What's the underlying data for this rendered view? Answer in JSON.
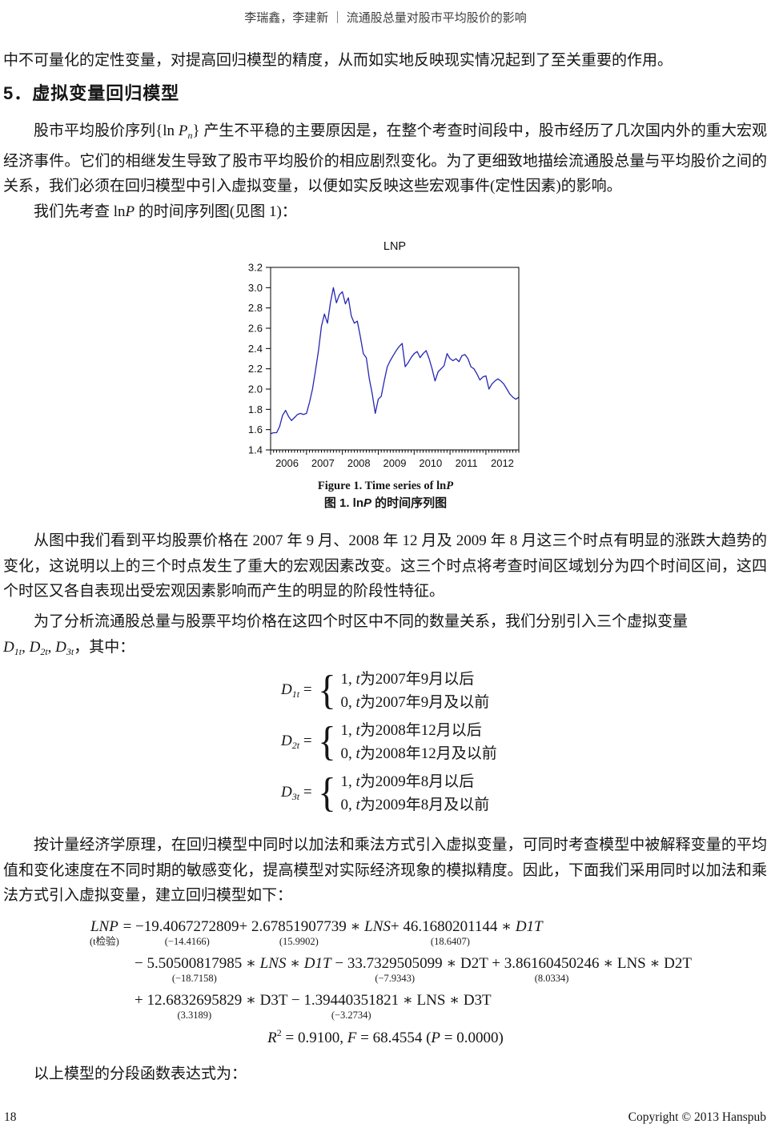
{
  "header": {
    "running_title": "李瑞鑫，李建新 ｜ 流通股总量对股市平均股价的影响"
  },
  "intro": {
    "text": "中不可量化的定性变量，对提高回归模型的精度，从而如实地反映现实情况起到了至关重要的作用。"
  },
  "section": {
    "heading": "5．虚拟变量回归模型"
  },
  "para1": {
    "runs": [
      {
        "t": "股市平均股价序列"
      },
      {
        "t": "{ln "
      },
      {
        "t": "P",
        "s": "it"
      },
      {
        "t": "n",
        "s": "sub"
      },
      {
        "t": "} "
      },
      {
        "t": "产生不平稳的主要原因是，在整个考查时间段中，股市经历了几次国内外的重大宏观经济事件。它们的相继发生导致了股市平均股价的相应剧烈变化。为了更细致地描绘流通股总量与平均股价之间的关系，我们必须在回归模型中引入虚拟变量，以便如实反映这些宏观事件(定性因素)的影响。"
      }
    ]
  },
  "para1b": {
    "runs": [
      {
        "t": "我们先考查 ln"
      },
      {
        "t": "P",
        "s": "it"
      },
      {
        "t": " 的时间序列图(见图 1)："
      }
    ]
  },
  "chart_data": {
    "type": "line",
    "title": "LNP",
    "ylim": [
      1.4,
      3.2
    ],
    "ytick_step": 0.2,
    "x_start_year": 2006,
    "x_frequency": "monthly",
    "year_labels": [
      2006,
      2007,
      2008,
      2009,
      2010,
      2011,
      2012
    ],
    "grid": false,
    "legend": "none",
    "series": [
      {
        "name": "LNP",
        "color": "#2626b4",
        "values": [
          1.56,
          1.57,
          1.57,
          1.63,
          1.74,
          1.79,
          1.73,
          1.69,
          1.72,
          1.75,
          1.76,
          1.75,
          1.76,
          1.87,
          2.0,
          2.18,
          2.38,
          2.62,
          2.74,
          2.65,
          2.85,
          3.0,
          2.85,
          2.93,
          2.96,
          2.84,
          2.9,
          2.72,
          2.65,
          2.67,
          2.52,
          2.35,
          2.31,
          2.1,
          1.95,
          1.76,
          1.9,
          1.93,
          2.08,
          2.22,
          2.28,
          2.33,
          2.38,
          2.42,
          2.45,
          2.22,
          2.26,
          2.31,
          2.35,
          2.37,
          2.31,
          2.35,
          2.38,
          2.3,
          2.2,
          2.08,
          2.17,
          2.2,
          2.23,
          2.35,
          2.3,
          2.28,
          2.3,
          2.27,
          2.33,
          2.34,
          2.3,
          2.22,
          2.2,
          2.15,
          2.09,
          2.12,
          2.13,
          2.0,
          2.05,
          2.08,
          2.1,
          2.08,
          2.05,
          2.0,
          1.95,
          1.92,
          1.9,
          1.92
        ]
      }
    ]
  },
  "caption": {
    "en_runs": [
      {
        "t": "Figure 1. Time series of ln"
      },
      {
        "t": "P",
        "s": "it"
      }
    ],
    "cn_runs": [
      {
        "t": "图 1. ln"
      },
      {
        "t": "P",
        "s": "it"
      },
      {
        "t": " 的时间序列图"
      }
    ]
  },
  "para2": {
    "text": "从图中我们看到平均股票价格在 2007 年 9 月、2008 年 12 月及 2009 年 8 月这三个时点有明显的涨跌大趋势的变化，这说明以上的三个时点发生了重大的宏观因素改变。这三个时点将考查时间区域划分为四个时间区间，这四个时区又各自表现出受宏观因素影响而产生的明显的阶段性特征。"
  },
  "para3": {
    "line1": "为了分析流通股总量与股票平均价格在这四个时区中不同的数量关系，我们分别引入三个虚拟变量",
    "line2_runs": [
      {
        "t": "D",
        "s": "it"
      },
      {
        "t": "1t",
        "s": "sub"
      },
      {
        "t": ", "
      },
      {
        "t": "D",
        "s": "it"
      },
      {
        "t": "2t",
        "s": "sub"
      },
      {
        "t": ", "
      },
      {
        "t": "D",
        "s": "it"
      },
      {
        "t": "3t",
        "s": "sub"
      },
      {
        "t": "，其中："
      }
    ]
  },
  "dummies": [
    {
      "lhs_runs": [
        {
          "t": "D",
          "s": "it"
        },
        {
          "t": "1t",
          "s": "sub"
        },
        {
          "t": " ="
        }
      ],
      "brace": "{",
      "case1_runs": [
        {
          "t": "1, "
        },
        {
          "t": "t",
          "s": "it"
        },
        {
          "t": "为2007年9月以后"
        }
      ],
      "case2_runs": [
        {
          "t": "0, "
        },
        {
          "t": "t",
          "s": "it"
        },
        {
          "t": "为2007年9月及以前"
        }
      ]
    },
    {
      "lhs_runs": [
        {
          "t": "D",
          "s": "it"
        },
        {
          "t": "2t",
          "s": "sub"
        },
        {
          "t": " ="
        }
      ],
      "brace": "{",
      "case1_runs": [
        {
          "t": "1, "
        },
        {
          "t": "t",
          "s": "it"
        },
        {
          "t": "为2008年12月以后"
        }
      ],
      "case2_runs": [
        {
          "t": "0, "
        },
        {
          "t": "t",
          "s": "it"
        },
        {
          "t": "为2008年12月及以前"
        }
      ]
    },
    {
      "lhs_runs": [
        {
          "t": "D",
          "s": "it"
        },
        {
          "t": "3t",
          "s": "sub"
        },
        {
          "t": " ="
        }
      ],
      "brace": "{",
      "case1_runs": [
        {
          "t": "1, "
        },
        {
          "t": "t",
          "s": "it"
        },
        {
          "t": "为2009年8月以后"
        }
      ],
      "case2_runs": [
        {
          "t": "0, "
        },
        {
          "t": "t",
          "s": "it"
        },
        {
          "t": "为2009年8月及以前"
        }
      ]
    }
  ],
  "para4": {
    "text": "按计量经济学原理，在回归模型中同时以加法和乘法方式引入虚拟变量，可同时考查模型中被解释变量的平均值和变化速度在不同时期的敏感变化，提高模型对实际经济现象的模拟精度。因此，下面我们采用同时以加法和乘法方式引入虚拟变量，建立回归模型如下："
  },
  "regression": {
    "lines": [
      {
        "indent": 0,
        "segs": [
          {
            "t": "LNP",
            "it": true,
            "stat": "(t检验)"
          },
          {
            "t": " = "
          },
          {
            "t": "−19.4067272809",
            "stat": "(−14.4166)"
          },
          {
            "t": "+ "
          },
          {
            "t": "2.67851907739",
            "stat": "(15.9902)"
          },
          {
            "t": " ∗ "
          },
          {
            "t": "LNS",
            "it": true
          },
          {
            "t": "+ "
          },
          {
            "t": "46.1680201144",
            "stat": "(18.6407)"
          },
          {
            "t": " ∗ "
          },
          {
            "t": "D1T",
            "it": true
          }
        ]
      },
      {
        "indent": 1,
        "segs": [
          {
            "t": "− "
          },
          {
            "t": "5.50500817985",
            "stat": "(−18.7158)"
          },
          {
            "t": " ∗ "
          },
          {
            "t": "LNS ∗ D1T",
            "it": true
          },
          {
            "t": " − "
          },
          {
            "t": "33.7329505099",
            "stat": "(−7.9343)"
          },
          {
            "t": " ∗ D2T + "
          },
          {
            "t": "3.86160450246",
            "stat": "(8.0334)"
          },
          {
            "t": " ∗ LNS ∗ D2T"
          }
        ]
      },
      {
        "indent": 1,
        "segs": [
          {
            "t": "+ "
          },
          {
            "t": "12.6832695829",
            "stat": "(3.3189)"
          },
          {
            "t": " ∗ D3T − "
          },
          {
            "t": "1.39440351821",
            "stat": "(−3.2734)"
          },
          {
            "t": " ∗ LNS ∗ D3T"
          }
        ]
      }
    ],
    "fit_runs": [
      {
        "t": "R",
        "s": "it"
      },
      {
        "t": "2",
        "s": "sup"
      },
      {
        "t": " = 0.9100, "
      },
      {
        "t": "F",
        "s": "it"
      },
      {
        "t": " = 68.4554 ("
      },
      {
        "t": "P",
        "s": "it"
      },
      {
        "t": " = 0.0000)"
      }
    ]
  },
  "closing": {
    "text": "以上模型的分段函数表达式为："
  },
  "footer": {
    "page_number": "18",
    "copyright": "Copyright © 2013 Hanspub"
  }
}
